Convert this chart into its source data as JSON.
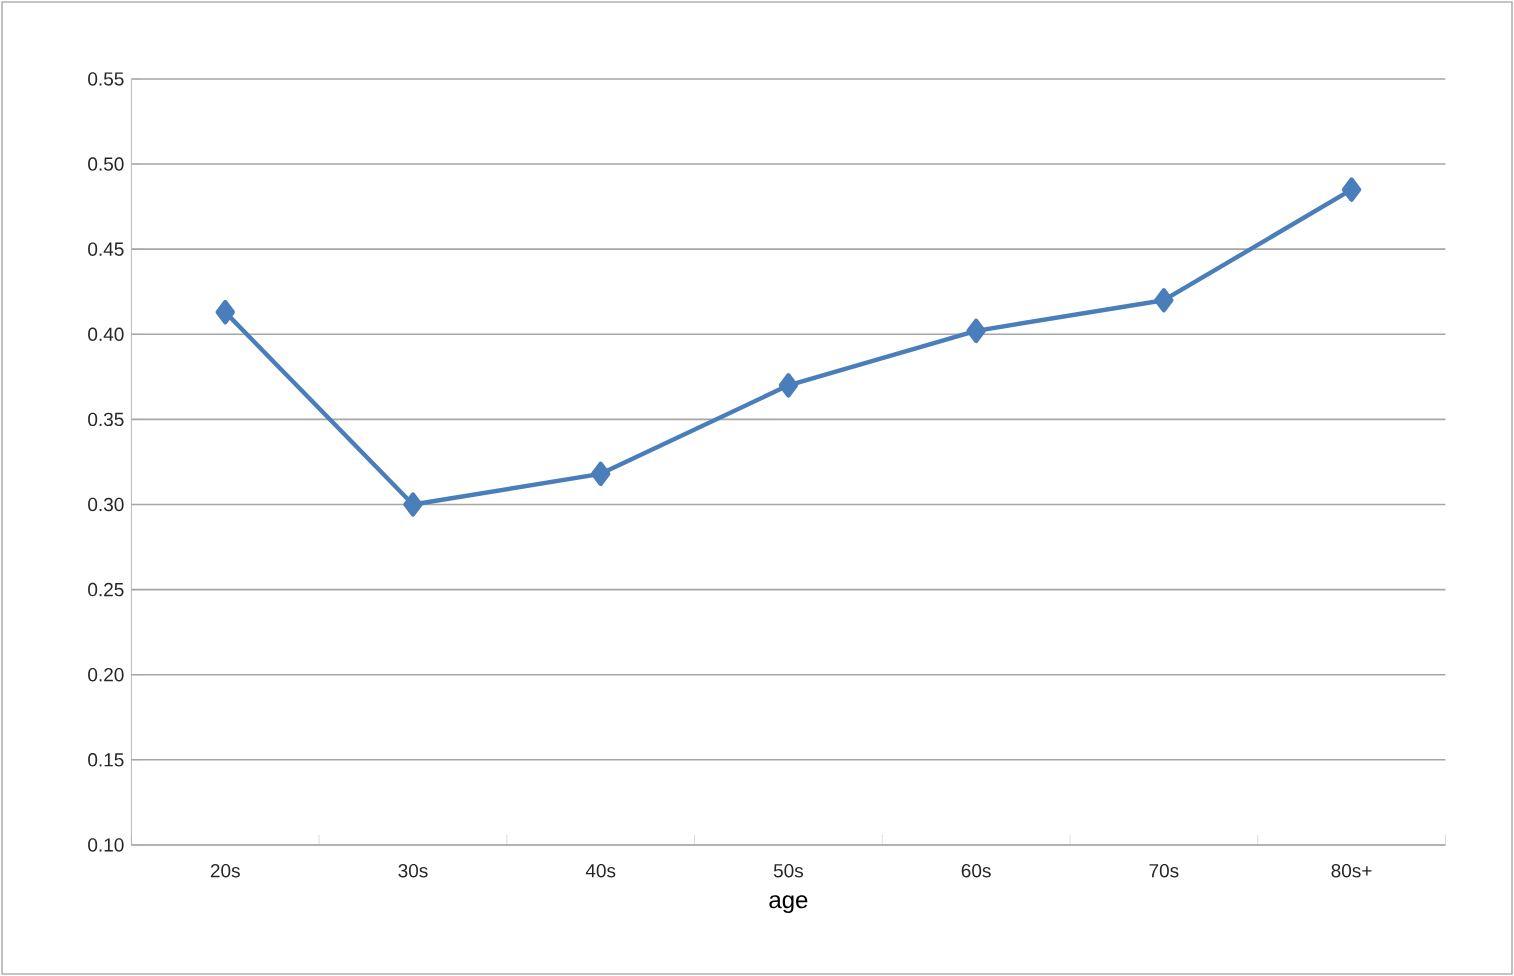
{
  "chart_data": {
    "type": "line",
    "xlabel": "age",
    "categories": [
      "20s",
      "30s",
      "40s",
      "50s",
      "60s",
      "70s",
      "80s+"
    ],
    "values": [
      0.413,
      0.3,
      0.318,
      0.37,
      0.402,
      0.42,
      0.485
    ],
    "color": "#4a7ebb",
    "marker": "diamond",
    "line_style": "solid",
    "grid": "y",
    "ylim": [
      0.1,
      0.55
    ],
    "yticks": [
      {
        "value": 0.1,
        "label": "0.10"
      },
      {
        "value": 0.15,
        "label": "0.15"
      },
      {
        "value": 0.2,
        "label": "0.20"
      },
      {
        "value": 0.25,
        "label": "0.25"
      },
      {
        "value": 0.3,
        "label": "0.30"
      },
      {
        "value": 0.35,
        "label": "0.35"
      },
      {
        "value": 0.4,
        "label": "0.40"
      },
      {
        "value": 0.45,
        "label": "0.45"
      },
      {
        "value": 0.5,
        "label": "0.50"
      },
      {
        "value": 0.55,
        "label": "0.55"
      }
    ]
  }
}
